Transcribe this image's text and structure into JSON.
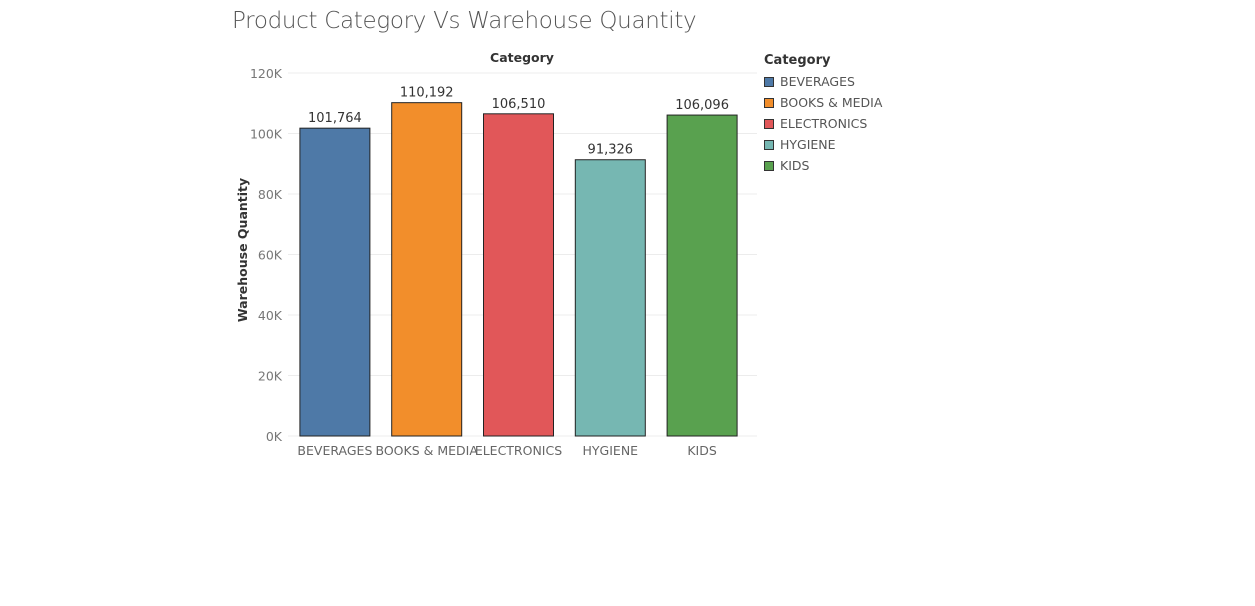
{
  "chart_data": {
    "type": "bar",
    "title": "Product Category Vs Warehouse Quantity",
    "xlabel": "Category",
    "ylabel": "Warehouse Quantity",
    "categories": [
      "BEVERAGES",
      "BOOKS & MEDIA",
      "ELECTRONICS",
      "HYGIENE",
      "KIDS"
    ],
    "values": [
      101764,
      110192,
      106510,
      91326,
      106096
    ],
    "data_labels": [
      "101,764",
      "110,192",
      "106,510",
      "91,326",
      "106,096"
    ],
    "colors": [
      "#4e79a7",
      "#f28e2b",
      "#e15759",
      "#76b7b2",
      "#59a14f"
    ],
    "ylim": [
      0,
      120000
    ],
    "yticks": [
      0,
      20000,
      40000,
      60000,
      80000,
      100000,
      120000
    ],
    "ytick_labels": [
      "0K",
      "20K",
      "40K",
      "60K",
      "80K",
      "100K",
      "120K"
    ],
    "grid": true,
    "legend": {
      "title": "Category",
      "position": "right",
      "entries": [
        "BEVERAGES",
        "BOOKS & MEDIA",
        "ELECTRONICS",
        "HYGIENE",
        "KIDS"
      ]
    }
  }
}
